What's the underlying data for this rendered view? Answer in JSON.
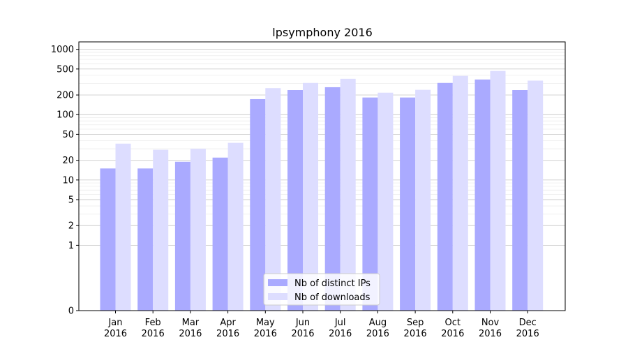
{
  "chart_data": {
    "type": "bar",
    "title": "lpsymphony 2016",
    "xlabel": "",
    "ylabel": "",
    "y_scale": "symlog",
    "ylim": [
      0,
      1300
    ],
    "y_ticks": [
      0,
      1,
      2,
      5,
      10,
      20,
      50,
      100,
      200,
      500,
      1000
    ],
    "y_tick_labels": [
      "0",
      "1",
      "2",
      "5",
      "10",
      "20",
      "50",
      "100",
      "200",
      "500",
      "1000"
    ],
    "grid": true,
    "legend_position": "bottom-center",
    "categories": [
      [
        "Jan",
        "2016"
      ],
      [
        "Feb",
        "2016"
      ],
      [
        "Mar",
        "2016"
      ],
      [
        "Apr",
        "2016"
      ],
      [
        "May",
        "2016"
      ],
      [
        "Jun",
        "2016"
      ],
      [
        "Jul",
        "2016"
      ],
      [
        "Aug",
        "2016"
      ],
      [
        "Sep",
        "2016"
      ],
      [
        "Oct",
        "2016"
      ],
      [
        "Nov",
        "2016"
      ],
      [
        "Dec",
        "2016"
      ]
    ],
    "series": [
      {
        "name": "Nb of distinct IPs",
        "color": "#aaaaff",
        "values": [
          15,
          15,
          19,
          22,
          173,
          238,
          263,
          183,
          183,
          306,
          345,
          238
        ]
      },
      {
        "name": "Nb of downloads",
        "color": "#ddddff",
        "values": [
          36,
          29,
          30,
          37,
          255,
          306,
          354,
          217,
          240,
          392,
          466,
          332
        ]
      }
    ]
  }
}
